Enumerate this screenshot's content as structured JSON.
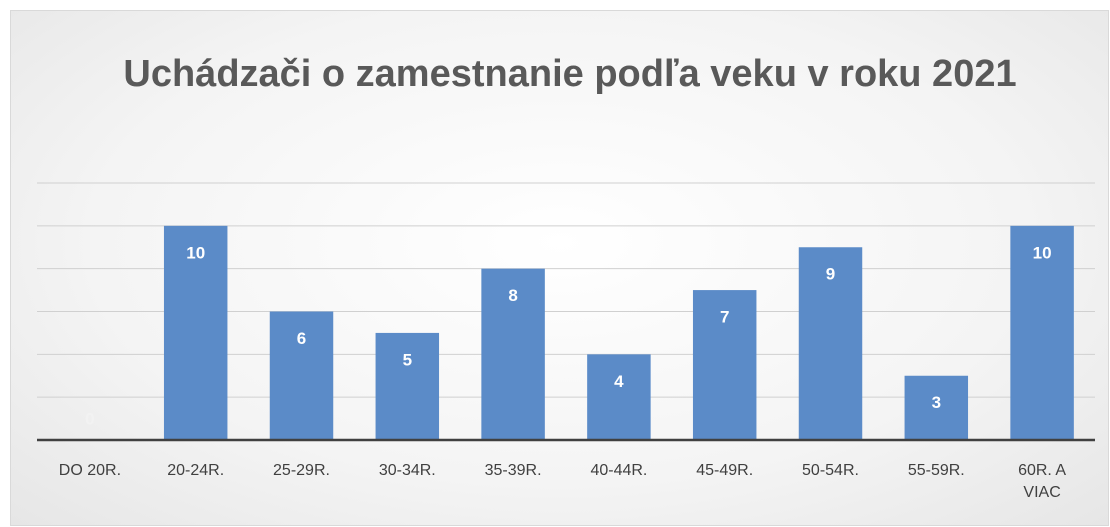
{
  "chart_data": {
    "type": "bar",
    "title": "Uchádzači o zamestnanie podľa veku v roku 2021",
    "categories": [
      "DO 20R.",
      "20-24R.",
      "25-29R.",
      "30-34R.",
      "35-39R.",
      "40-44R.",
      "45-49R.",
      "50-54R.",
      "55-59R.",
      "60R. A VIAC"
    ],
    "values": [
      0,
      10,
      6,
      5,
      8,
      4,
      7,
      9,
      3,
      10
    ],
    "color": "#5b8bc8",
    "ylim": [
      0,
      12
    ],
    "yticks": [
      0,
      2,
      4,
      6,
      8,
      10,
      12
    ],
    "grid": true
  }
}
